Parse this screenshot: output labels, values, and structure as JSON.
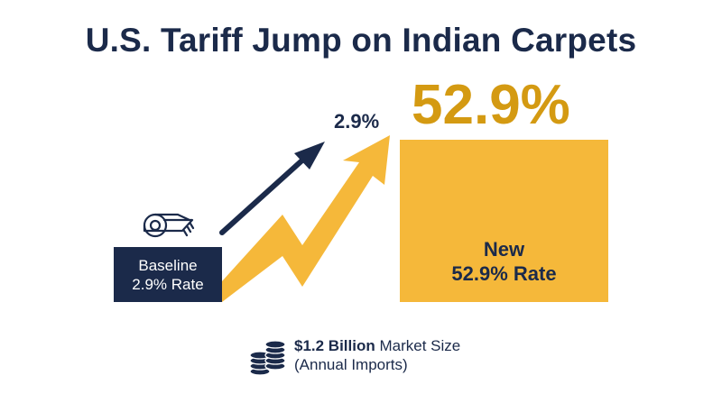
{
  "title": "U.S. Tariff Jump on Indian Carpets",
  "baseline": {
    "line1": "Baseline",
    "line2": "2.9% Rate",
    "rate": "2.9%"
  },
  "new_rate": {
    "big": "52.9%",
    "line1": "New",
    "line2": "52.9% Rate"
  },
  "market": {
    "amount": "$1.2 Billion",
    "label": "Market Size",
    "note": "(Annual Imports)"
  },
  "icons": {
    "baseline_icon": "carpet-roll-icon",
    "new_icon": "carpet-roll-icon",
    "market_icon": "coin-stack-icon"
  },
  "colors": {
    "navy": "#1b2a4a",
    "gold": "#f5b83a",
    "dark_gold": "#d49a12"
  }
}
